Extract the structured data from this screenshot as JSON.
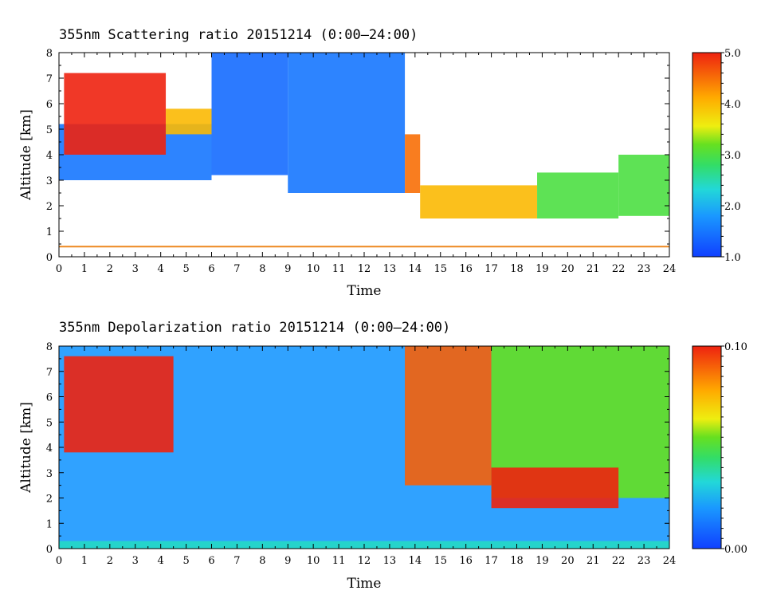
{
  "chart_data": [
    {
      "type": "heatmap",
      "title": "355nm Scattering ratio  20151214 (0:00–24:00)",
      "xlabel": "Time",
      "ylabel": "Altitude [km]",
      "xlim": [
        0,
        24
      ],
      "ylim": [
        0,
        8
      ],
      "x_ticks": [
        0,
        1,
        2,
        3,
        4,
        5,
        6,
        7,
        8,
        9,
        10,
        11,
        12,
        13,
        14,
        15,
        16,
        17,
        18,
        19,
        20,
        21,
        22,
        23,
        24
      ],
      "y_ticks": [
        0,
        1,
        2,
        3,
        4,
        5,
        6,
        7,
        8
      ],
      "colorbar": {
        "range": [
          1.0,
          5.0
        ],
        "tick_labels": [
          "1.0",
          "2.0",
          "3.0",
          "4.0",
          "5.0"
        ],
        "tick_values": [
          1.0,
          2.0,
          3.0,
          4.0,
          5.0
        ]
      },
      "surface_line_altitude_km": 0.4,
      "regions": [
        {
          "x0": 0.0,
          "x1": 6.0,
          "y0": 3.0,
          "y1": 5.2,
          "value": 1.5
        },
        {
          "x0": 6.0,
          "x1": 9.0,
          "y0": 3.2,
          "y1": 8.0,
          "value": 1.4
        },
        {
          "x0": 9.0,
          "x1": 13.6,
          "y0": 2.5,
          "y1": 8.0,
          "value": 1.5
        },
        {
          "x0": 0.2,
          "x1": 4.2,
          "y0": 4.0,
          "y1": 7.2,
          "value": 5.0
        },
        {
          "x0": 4.2,
          "x1": 6.0,
          "y0": 4.8,
          "y1": 5.8,
          "value": 4.0
        },
        {
          "x0": 13.6,
          "x1": 14.2,
          "y0": 2.5,
          "y1": 4.8,
          "value": 4.5
        },
        {
          "x0": 14.2,
          "x1": 18.8,
          "y0": 1.5,
          "y1": 2.8,
          "value": 4.0
        },
        {
          "x0": 18.8,
          "x1": 22.0,
          "y0": 1.5,
          "y1": 3.3,
          "value": 3.0
        },
        {
          "x0": 22.0,
          "x1": 24.0,
          "y0": 1.6,
          "y1": 4.0,
          "value": 3.0
        }
      ]
    },
    {
      "type": "heatmap",
      "title": "355nm Depolarization ratio  20151214 (0:00–24:00)",
      "xlabel": "Time",
      "ylabel": "Altitude [km]",
      "xlim": [
        0,
        24
      ],
      "ylim": [
        0,
        8
      ],
      "x_ticks": [
        0,
        1,
        2,
        3,
        4,
        5,
        6,
        7,
        8,
        9,
        10,
        11,
        12,
        13,
        14,
        15,
        16,
        17,
        18,
        19,
        20,
        21,
        22,
        23,
        24
      ],
      "y_ticks": [
        0,
        1,
        2,
        3,
        4,
        5,
        6,
        7,
        8
      ],
      "colorbar": {
        "range": [
          0.0,
          0.1
        ],
        "tick_labels": [
          "0.00",
          "0.10"
        ],
        "tick_values": [
          0.0,
          0.1
        ]
      },
      "regions": [
        {
          "x0": 0.0,
          "x1": 24.0,
          "y0": 0.0,
          "y1": 8.0,
          "value": 0.02
        },
        {
          "x0": 0.0,
          "x1": 24.0,
          "y0": 0.0,
          "y1": 0.3,
          "value": 0.035
        },
        {
          "x0": 0.2,
          "x1": 4.5,
          "y0": 3.8,
          "y1": 7.6,
          "value": 0.1
        },
        {
          "x0": 13.6,
          "x1": 17.0,
          "y0": 2.5,
          "y1": 8.0,
          "value": 0.09
        },
        {
          "x0": 17.0,
          "x1": 24.0,
          "y0": 2.0,
          "y1": 8.0,
          "value": 0.055
        },
        {
          "x0": 17.0,
          "x1": 22.0,
          "y0": 1.6,
          "y1": 3.2,
          "value": 0.1
        }
      ]
    }
  ]
}
